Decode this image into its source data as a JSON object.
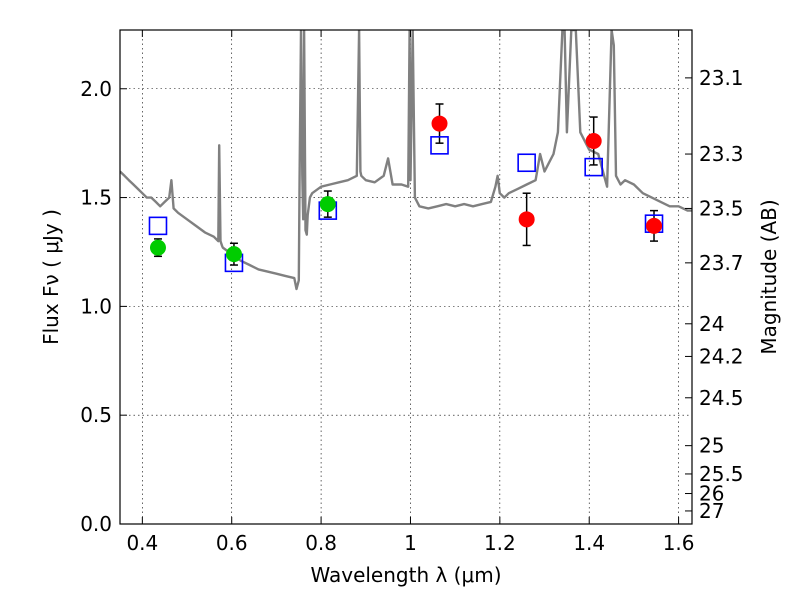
{
  "chart_data": {
    "type": "scatter",
    "xlabel": "Wavelength  λ (μm)",
    "ylabel_left": "Flux  Fν  ( μJy )",
    "ylabel_right": "Magnitude (AB)",
    "xlim": [
      0.35,
      1.63
    ],
    "ylim": [
      0.0,
      2.27
    ],
    "x_ticks": [
      0.4,
      0.6,
      0.8,
      1.0,
      1.2,
      1.4,
      1.6
    ],
    "x_tick_labels": [
      "0.4",
      "0.6",
      "0.8",
      "1",
      "1.2",
      "1.4",
      "1.6"
    ],
    "y_ticks": [
      0.0,
      0.5,
      1.0,
      1.5,
      2.0
    ],
    "y_tick_labels": [
      "0.0",
      "0.5",
      "1.0",
      "1.5",
      "2.0"
    ],
    "right_ticks": [
      {
        "flux": 2.05,
        "label": "23.1"
      },
      {
        "flux": 1.7,
        "label": "23.3"
      },
      {
        "flux": 1.45,
        "label": "23.5"
      },
      {
        "flux": 1.2,
        "label": "23.7"
      },
      {
        "flux": 0.92,
        "label": "24"
      },
      {
        "flux": 0.77,
        "label": "24.2"
      },
      {
        "flux": 0.58,
        "label": "24.5"
      },
      {
        "flux": 0.36,
        "label": "25"
      },
      {
        "flux": 0.23,
        "label": "25.5"
      },
      {
        "flux": 0.14,
        "label": "26"
      },
      {
        "flux": 0.06,
        "label": "27"
      }
    ],
    "grid": true,
    "series": [
      {
        "kind": "line",
        "color": "#808080",
        "x": [
          0.35,
          0.36,
          0.37,
          0.38,
          0.39,
          0.4,
          0.41,
          0.42,
          0.43,
          0.44,
          0.45,
          0.46,
          0.465,
          0.47,
          0.475,
          0.48,
          0.5,
          0.52,
          0.54,
          0.56,
          0.57,
          0.572,
          0.575,
          0.578,
          0.58,
          0.6,
          0.62,
          0.64,
          0.66,
          0.68,
          0.7,
          0.72,
          0.74,
          0.745,
          0.75,
          0.752,
          0.755,
          0.758,
          0.76,
          0.762,
          0.765,
          0.768,
          0.77,
          0.775,
          0.78,
          0.8,
          0.82,
          0.84,
          0.86,
          0.88,
          0.885,
          0.888,
          0.89,
          0.9,
          0.92,
          0.94,
          0.95,
          0.96,
          0.98,
          0.995,
          0.998,
          1.0,
          1.005,
          1.01,
          1.02,
          1.04,
          1.06,
          1.08,
          1.1,
          1.12,
          1.14,
          1.16,
          1.18,
          1.19,
          1.195,
          1.2,
          1.21,
          1.22,
          1.24,
          1.26,
          1.28,
          1.29,
          1.3,
          1.31,
          1.32,
          1.33,
          1.34,
          1.345,
          1.35,
          1.36,
          1.37,
          1.38,
          1.4,
          1.42,
          1.44,
          1.45,
          1.455,
          1.46,
          1.47,
          1.48,
          1.5,
          1.52,
          1.54,
          1.56,
          1.58,
          1.6,
          1.62,
          1.63
        ],
        "y": [
          1.62,
          1.6,
          1.58,
          1.56,
          1.54,
          1.52,
          1.5,
          1.5,
          1.48,
          1.46,
          1.48,
          1.5,
          1.58,
          1.45,
          1.44,
          1.43,
          1.4,
          1.37,
          1.34,
          1.32,
          1.3,
          1.74,
          1.3,
          1.28,
          1.27,
          1.24,
          1.21,
          1.19,
          1.17,
          1.16,
          1.15,
          1.14,
          1.13,
          1.08,
          1.12,
          1.6,
          2.27,
          1.6,
          1.4,
          2.27,
          1.35,
          1.33,
          1.42,
          1.5,
          1.52,
          1.55,
          1.56,
          1.57,
          1.58,
          1.6,
          2.27,
          1.62,
          1.6,
          1.58,
          1.57,
          1.6,
          1.68,
          1.56,
          1.56,
          1.55,
          2.27,
          1.58,
          2.27,
          1.5,
          1.46,
          1.45,
          1.46,
          1.47,
          1.46,
          1.47,
          1.46,
          1.47,
          1.48,
          1.55,
          1.6,
          1.52,
          1.5,
          1.52,
          1.54,
          1.56,
          1.58,
          1.7,
          1.62,
          1.66,
          1.7,
          1.8,
          2.27,
          2.27,
          1.8,
          2.27,
          2.27,
          1.8,
          1.72,
          1.7,
          1.55,
          2.27,
          2.2,
          1.6,
          1.56,
          1.58,
          1.56,
          1.52,
          1.5,
          1.48,
          1.46,
          1.46,
          1.44,
          1.44
        ]
      },
      {
        "kind": "open-square",
        "color": "#0000ff",
        "x": [
          0.435,
          0.605,
          0.815,
          1.065,
          1.26,
          1.41,
          1.545
        ],
        "y": [
          1.37,
          1.2,
          1.44,
          1.74,
          1.66,
          1.64,
          1.38
        ]
      },
      {
        "kind": "filled-circle",
        "color": "#00cc00",
        "x": [
          0.435,
          0.605,
          0.815
        ],
        "y": [
          1.27,
          1.24,
          1.47
        ],
        "err": [
          0.04,
          0.05,
          0.06
        ]
      },
      {
        "kind": "filled-circle",
        "color": "#ff0000",
        "x": [
          1.065,
          1.26,
          1.41,
          1.545
        ],
        "y": [
          1.84,
          1.4,
          1.76,
          1.37
        ],
        "err": [
          0.09,
          0.12,
          0.11,
          0.07
        ]
      }
    ]
  }
}
